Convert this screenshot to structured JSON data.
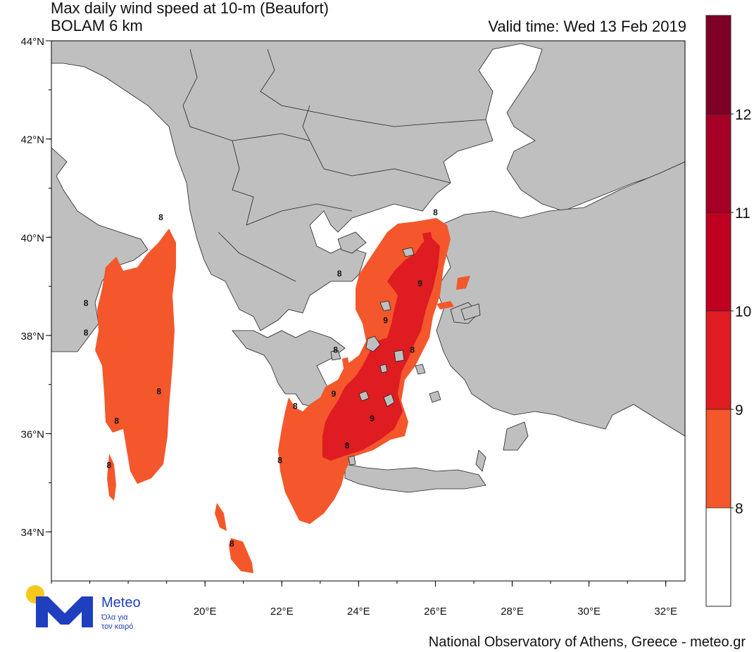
{
  "header": {
    "title_line1": "Max daily wind speed at 10-m (Beaufort)",
    "title_line2": "BOLAM 6 km",
    "valid_time": "Valid time: Wed 13 Feb 2019"
  },
  "map": {
    "region": "Greece and surrounding seas",
    "lat_ticks": [
      "44°N",
      "42°N",
      "40°N",
      "38°N",
      "36°N",
      "34°N"
    ],
    "lon_ticks": [
      "20°E",
      "22°E",
      "24°E",
      "26°E",
      "28°E",
      "30°E",
      "32°E"
    ],
    "lat_range": [
      33.0,
      44.0
    ],
    "lon_range": [
      16.0,
      32.5
    ],
    "land_color": "#bfbfbf",
    "sea_color": "#ffffff",
    "contour_labels": [
      {
        "text": "8",
        "lon": 18.85,
        "lat": 40.35
      },
      {
        "text": "8",
        "lon": 16.9,
        "lat": 38.6
      },
      {
        "text": "8",
        "lon": 16.9,
        "lat": 38.0
      },
      {
        "text": "8",
        "lon": 18.8,
        "lat": 36.8
      },
      {
        "text": "8",
        "lon": 17.7,
        "lat": 36.2
      },
      {
        "text": "8",
        "lon": 17.5,
        "lat": 35.3
      },
      {
        "text": "8",
        "lon": 20.7,
        "lat": 33.7
      },
      {
        "text": "8",
        "lon": 22.35,
        "lat": 36.5
      },
      {
        "text": "8",
        "lon": 21.95,
        "lat": 35.4
      },
      {
        "text": "8",
        "lon": 23.5,
        "lat": 39.2
      },
      {
        "text": "8",
        "lon": 23.4,
        "lat": 37.65
      },
      {
        "text": "8",
        "lon": 23.7,
        "lat": 35.7
      },
      {
        "text": "8",
        "lon": 25.4,
        "lat": 37.65
      },
      {
        "text": "8",
        "lon": 26.0,
        "lat": 40.45
      },
      {
        "text": "9",
        "lon": 25.6,
        "lat": 39.0
      },
      {
        "text": "9",
        "lon": 24.7,
        "lat": 38.25
      },
      {
        "text": "9",
        "lon": 23.35,
        "lat": 36.75
      },
      {
        "text": "9",
        "lon": 24.35,
        "lat": 36.25
      }
    ]
  },
  "legend": {
    "title": "Beaufort",
    "levels": [
      {
        "label": "",
        "color": "#ffffff"
      },
      {
        "label": "8",
        "color": "#f4572b"
      },
      {
        "label": "9",
        "color": "#de1c22"
      },
      {
        "label": "10",
        "color": "#c00021"
      },
      {
        "label": "11",
        "color": "#a50026"
      },
      {
        "label": "12",
        "color": "#7f0026"
      }
    ],
    "tick_labels": [
      "8",
      "9",
      "10",
      "11",
      "12"
    ]
  },
  "logo": {
    "word": "Meteo",
    "tagline_line1": "Όλα για",
    "tagline_line2": "τον καιρό",
    "sun_color": "#f7c81c",
    "brand_color": "#1f3fbf"
  },
  "footer": {
    "credit": "National Observatory of Athens, Greece - meteo.gr"
  }
}
